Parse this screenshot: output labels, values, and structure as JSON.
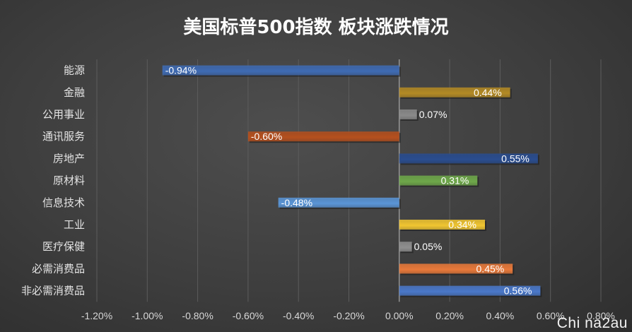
{
  "chart_data": {
    "type": "bar",
    "orientation": "horizontal",
    "title": "美国标普500指数 板块涨跌情况",
    "categories": [
      "能源",
      "金融",
      "公用事业",
      "通讯服务",
      "房地产",
      "原材料",
      "信息技术",
      "工业",
      "医疗保健",
      "必需消费品",
      "非必需消费品"
    ],
    "values": [
      -0.94,
      0.44,
      0.07,
      -0.6,
      0.55,
      0.31,
      -0.48,
      0.34,
      0.05,
      0.45,
      0.56
    ],
    "value_labels": [
      "-0.94%",
      "0.44%",
      "0.07%",
      "-0.60%",
      "0.55%",
      "0.31%",
      "-0.48%",
      "0.34%",
      "0.05%",
      "0.45%",
      "0.56%"
    ],
    "colors": [
      "#3f6bb3",
      "#b38a25",
      "#8a8a8a",
      "#b5501e",
      "#2a4d8f",
      "#6ea84a",
      "#5a95d6",
      "#f0c531",
      "#8f8f8f",
      "#e8793a",
      "#4a78c9"
    ],
    "xlim": [
      -1.2,
      0.8
    ],
    "xticks": [
      -1.2,
      -1.0,
      -0.8,
      -0.6,
      -0.4,
      -0.2,
      0.0,
      0.2,
      0.4,
      0.6,
      0.8
    ],
    "xtick_labels": [
      "-1.20%",
      "-1.00%",
      "-0.80%",
      "-0.60%",
      "-0.40%",
      "-0.20%",
      "0.00%",
      "0.20%",
      "0.40%",
      "0.60%",
      "0.80%"
    ],
    "xlabel": "",
    "ylabel": "",
    "grid": true,
    "legend": "none"
  },
  "watermark": "Chi na2au"
}
